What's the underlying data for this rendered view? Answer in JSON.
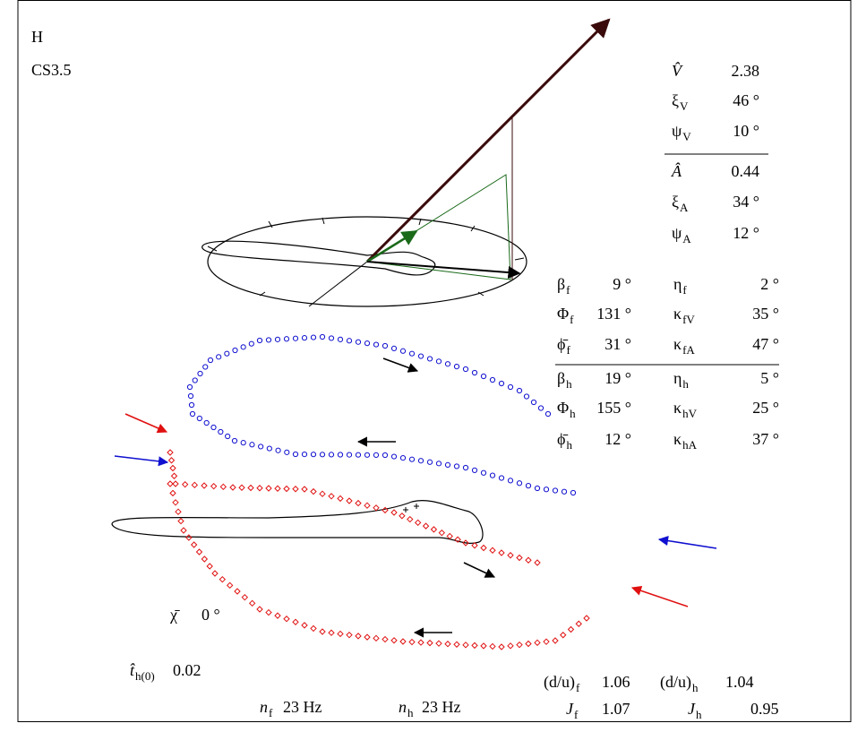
{
  "header": {
    "panel": "H",
    "case": "CS3.5"
  },
  "vector_table": [
    {
      "symbol": "V̂",
      "sub": "",
      "value": "2.38"
    },
    {
      "symbol": "ξ",
      "sub": "V",
      "value": "46 °"
    },
    {
      "symbol": "ψ",
      "sub": "V",
      "value": "10 °"
    },
    {
      "symbol": "Â",
      "sub": "",
      "value": "0.44"
    },
    {
      "symbol": "ξ",
      "sub": "A",
      "value": "34 °"
    },
    {
      "symbol": "ψ",
      "sub": "A",
      "value": "12 °"
    }
  ],
  "param_table": [
    [
      {
        "symbol": "β",
        "sub": "f",
        "value": "9 °"
      },
      {
        "symbol": "η",
        "sub": "f",
        "value": "2 °"
      }
    ],
    [
      {
        "symbol": "Φ",
        "sub": "f",
        "value": "131 °"
      },
      {
        "symbol": "κ",
        "sub": "fV",
        "value": "35 °"
      }
    ],
    [
      {
        "symbol": "ϕ̄",
        "sub": "f",
        "value": "31 °"
      },
      {
        "symbol": "κ",
        "sub": "fA",
        "value": "47 °"
      }
    ],
    [
      {
        "symbol": "β",
        "sub": "h",
        "value": "19 °"
      },
      {
        "symbol": "η",
        "sub": "h",
        "value": "5 °"
      }
    ],
    [
      {
        "symbol": "Φ",
        "sub": "h",
        "value": "155 °"
      },
      {
        "symbol": "κ",
        "sub": "hV",
        "value": "25 °"
      }
    ],
    [
      {
        "symbol": "ϕ̄",
        "sub": "h",
        "value": "12 °"
      },
      {
        "symbol": "κ",
        "sub": "hA",
        "value": "37 °"
      }
    ]
  ],
  "chi": {
    "symbol": "χ̄",
    "sub": "",
    "value": "0 °"
  },
  "t_hat": {
    "symbol": "t̂",
    "sub": "h(0)",
    "value": "0.02"
  },
  "frequencies": [
    {
      "symbol": "n",
      "sub": "f",
      "value": "23 Hz"
    },
    {
      "symbol": "n",
      "sub": "h",
      "value": "23 Hz"
    }
  ],
  "ratios": [
    [
      {
        "symbol": "(d/u)",
        "sub": "f",
        "value": "1.06"
      },
      {
        "symbol": "(d/u)",
        "sub": "h",
        "value": "1.04"
      }
    ],
    [
      {
        "symbol": "J",
        "sub": "f",
        "value": "1.07"
      },
      {
        "symbol": "J",
        "sub": "h",
        "value": "0.95"
      }
    ]
  ]
}
